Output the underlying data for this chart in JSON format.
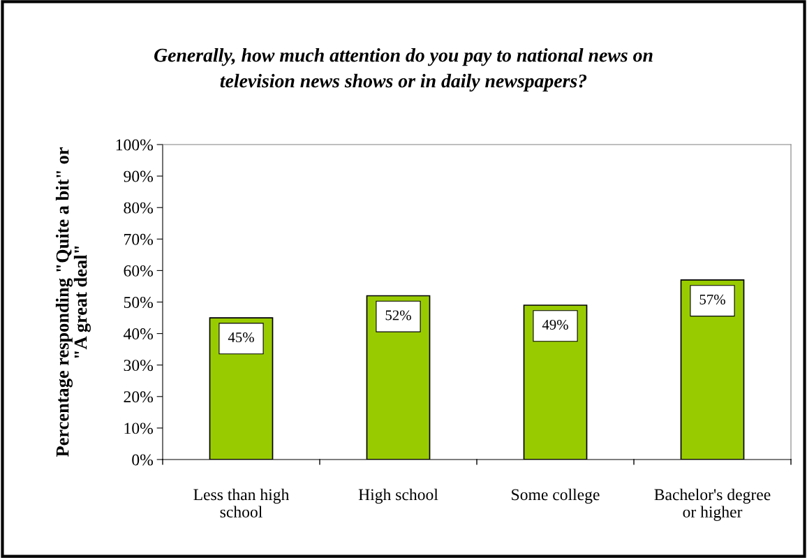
{
  "chart_data": {
    "type": "bar",
    "title": "Generally, how much attention do you pay to national news on\ntelevision news shows or in daily newspapers?",
    "ylabel": "Percentage responding \"Quite a bit\" or\n\"A great deal\"",
    "categories": [
      "Less than high\nschool",
      "High school",
      "Some college",
      "Bachelor's degree\nor higher"
    ],
    "values": [
      45,
      52,
      49,
      57
    ],
    "color": "#99cc00",
    "value_labels": [
      "45%",
      "52%",
      "49%",
      "57%"
    ],
    "ylim": [
      0,
      100
    ],
    "yticks": [
      {
        "value": 0,
        "label": "0%"
      },
      {
        "value": 10,
        "label": "10%"
      },
      {
        "value": 20,
        "label": "20%"
      },
      {
        "value": 30,
        "label": "30%"
      },
      {
        "value": 40,
        "label": "40%"
      },
      {
        "value": 50,
        "label": "50%"
      },
      {
        "value": 60,
        "label": "60%"
      },
      {
        "value": 70,
        "label": "70%"
      },
      {
        "value": 80,
        "label": "80%"
      },
      {
        "value": 90,
        "label": "90%"
      },
      {
        "value": 100,
        "label": "100%"
      }
    ],
    "grid": false,
    "legend": false
  }
}
